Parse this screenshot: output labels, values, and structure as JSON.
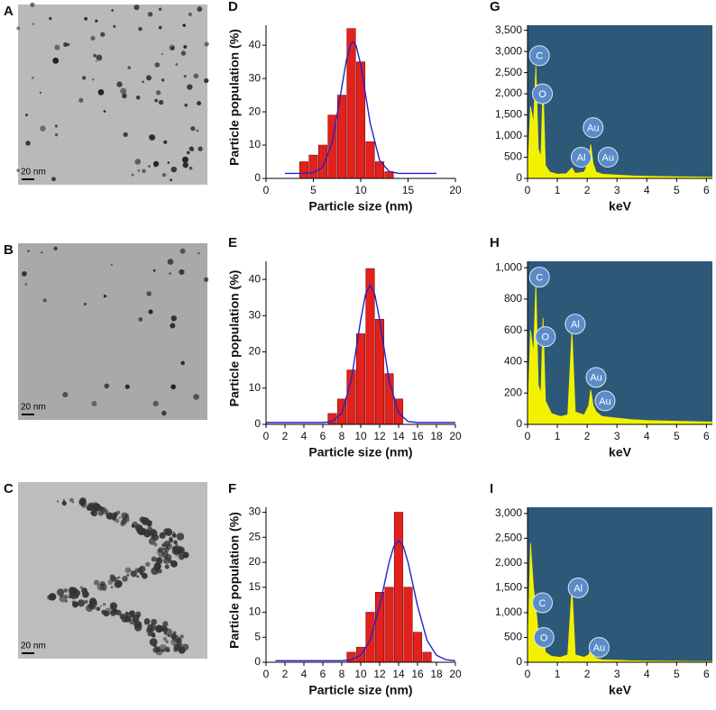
{
  "images": [
    {
      "label": "A",
      "scale_bar": "20 nm"
    },
    {
      "label": "B",
      "scale_bar": "20 nm"
    },
    {
      "label": "C",
      "scale_bar": "20 nm"
    }
  ],
  "chart_data": [
    {
      "type": "histogram",
      "label": "D",
      "x_label": "Particle size (nm)",
      "y_label": "Particle population (%)",
      "color": "#e3211c",
      "bins": [
        3.5,
        4.5,
        5.5,
        6.5,
        7.5,
        8.5,
        9.5,
        10.5,
        11.5,
        12.5,
        13.5
      ],
      "values": [
        5,
        7,
        10,
        19,
        25,
        45,
        35,
        11,
        5,
        2
      ],
      "fit": {
        "color": "#2222cc",
        "x": [
          2,
          4,
          5,
          6,
          7,
          8,
          8.5,
          9,
          9.2,
          9.5,
          10,
          11,
          12,
          13,
          14,
          18
        ],
        "values": [
          1.5,
          1.5,
          1.7,
          3.4,
          10.9,
          27.3,
          35.7,
          40.5,
          41,
          40,
          34.2,
          16.6,
          5.4,
          2.1,
          1.5,
          1.5
        ]
      },
      "xlim": [
        0,
        20
      ],
      "xticks": [
        0,
        5,
        10,
        15,
        20
      ],
      "ylim": [
        0,
        46
      ],
      "yticks": [
        0,
        10,
        20,
        30,
        40
      ]
    },
    {
      "type": "histogram",
      "label": "E",
      "x_label": "Particle size (nm)",
      "y_label": "Particle population (%)",
      "color": "#e3211c",
      "bins": [
        6.5,
        7.5,
        8.5,
        9.5,
        10.5,
        11.5,
        12.5,
        13.5,
        14.5
      ],
      "values": [
        3,
        7,
        15,
        25,
        43,
        29,
        14,
        7
      ],
      "fit": {
        "color": "#2222cc",
        "x": [
          0,
          6,
          7,
          8,
          9,
          10,
          10.5,
          11,
          11.5,
          12,
          13,
          14,
          15,
          16,
          20
        ],
        "values": [
          0.5,
          0.5,
          0.8,
          3.1,
          12.1,
          28.8,
          35.8,
          38.5,
          35.8,
          28.8,
          12.1,
          3.1,
          0.8,
          0.5,
          0.5
        ]
      },
      "xlim": [
        0,
        20
      ],
      "xticks": [
        0,
        2,
        4,
        6,
        8,
        10,
        12,
        14,
        16,
        18,
        20
      ],
      "ylim": [
        0,
        45
      ],
      "yticks": [
        0,
        10,
        20,
        30,
        40
      ]
    },
    {
      "type": "histogram",
      "label": "F",
      "x_label": "Particle size (nm)",
      "y_label": "Particle population (%)",
      "color": "#e3211c",
      "bins": [
        8.5,
        9.5,
        10.5,
        11.5,
        12.5,
        13.5,
        14.5,
        15.5,
        16.5,
        17.5
      ],
      "values": [
        2,
        3,
        10,
        14,
        15,
        30,
        15,
        6,
        2
      ],
      "fit": {
        "color": "#2222cc",
        "x": [
          1,
          8,
          9,
          10,
          11,
          12,
          13,
          13.5,
          14,
          14.5,
          15,
          16,
          17,
          18,
          19,
          20
        ],
        "values": [
          0.3,
          0.3,
          0.5,
          1.4,
          4.4,
          11.3,
          20,
          23.2,
          24.3,
          23.2,
          20,
          11.3,
          4.4,
          1.4,
          0.5,
          0.3
        ]
      },
      "xlim": [
        0,
        20
      ],
      "xticks": [
        0,
        2,
        4,
        6,
        8,
        10,
        12,
        14,
        16,
        18,
        20
      ],
      "ylim": [
        0,
        31
      ],
      "yticks": [
        0,
        5,
        10,
        15,
        20,
        25,
        30
      ]
    },
    {
      "type": "area",
      "label": "G",
      "x_label": "keV",
      "color": "#f2f200",
      "background": "#2e5878",
      "x": [
        0,
        0.1,
        0.2,
        0.28,
        0.36,
        0.45,
        0.52,
        0.6,
        0.75,
        1.0,
        1.3,
        1.49,
        1.6,
        1.9,
        2.05,
        2.12,
        2.2,
        2.3,
        2.5,
        3.0,
        3.5,
        4,
        5,
        6.2
      ],
      "values": [
        0,
        1700,
        1300,
        2650,
        700,
        500,
        2200,
        300,
        150,
        100,
        110,
        250,
        120,
        150,
        400,
        800,
        350,
        150,
        100,
        80,
        60,
        50,
        40,
        30
      ],
      "annotations": [
        {
          "text": "C",
          "x": 0.4,
          "y": 2900
        },
        {
          "text": "O",
          "x": 0.5,
          "y": 2000
        },
        {
          "text": "Au",
          "x": 2.2,
          "y": 1200
        },
        {
          "text": "Al",
          "x": 1.8,
          "y": 500
        },
        {
          "text": "Au",
          "x": 2.7,
          "y": 500
        }
      ],
      "xlim": [
        0,
        6.2
      ],
      "xticks": [
        0,
        1,
        2,
        3,
        4,
        5,
        6
      ],
      "ylim": [
        0,
        3620
      ],
      "yticks": [
        0,
        500,
        {
          "value": 1000,
          "label": "1,000"
        },
        {
          "value": 1500,
          "label": "1,500"
        },
        {
          "value": 2000,
          "label": "2,000"
        },
        {
          "value": 2500,
          "label": "2,500"
        },
        {
          "value": 3000,
          "label": "3,000"
        },
        {
          "value": 3500,
          "label": "3,500"
        }
      ]
    },
    {
      "type": "area",
      "label": "H",
      "x_label": "keV",
      "color": "#f2f200",
      "background": "#2e5878",
      "x": [
        0,
        0.1,
        0.2,
        0.28,
        0.36,
        0.45,
        0.52,
        0.6,
        0.8,
        1.1,
        1.35,
        1.49,
        1.6,
        1.9,
        2.05,
        2.12,
        2.2,
        2.3,
        2.5,
        3,
        3.5,
        4,
        5,
        6.2
      ],
      "values": [
        0,
        600,
        450,
        900,
        250,
        200,
        680,
        150,
        70,
        50,
        60,
        600,
        80,
        60,
        120,
        220,
        120,
        80,
        50,
        40,
        30,
        25,
        20,
        15
      ],
      "annotations": [
        {
          "text": "C",
          "x": 0.4,
          "y": 940
        },
        {
          "text": "O",
          "x": 0.6,
          "y": 560
        },
        {
          "text": "Al",
          "x": 1.6,
          "y": 640
        },
        {
          "text": "Au",
          "x": 2.3,
          "y": 300
        },
        {
          "text": "Au",
          "x": 2.6,
          "y": 150
        }
      ],
      "xlim": [
        0,
        6.2
      ],
      "xticks": [
        0,
        1,
        2,
        3,
        4,
        5,
        6
      ],
      "ylim": [
        0,
        1041
      ],
      "yticks": [
        0,
        200,
        400,
        600,
        800,
        {
          "value": 1000,
          "label": "1,000"
        }
      ]
    },
    {
      "type": "area",
      "label": "I",
      "x_label": "keV",
      "color": "#f2f200",
      "background": "#2e5878",
      "x": [
        0,
        0.1,
        0.2,
        0.28,
        0.36,
        0.45,
        0.52,
        0.6,
        0.8,
        1.1,
        1.35,
        1.49,
        1.6,
        1.9,
        2.05,
        2.12,
        2.2,
        2.3,
        2.5,
        3,
        3.5,
        4,
        5,
        6.2
      ],
      "values": [
        0,
        2400,
        1500,
        1100,
        600,
        500,
        700,
        200,
        120,
        100,
        150,
        1500,
        150,
        100,
        150,
        250,
        120,
        80,
        50,
        40,
        30,
        25,
        20,
        15
      ],
      "annotations": [
        {
          "text": "C",
          "x": 0.5,
          "y": 1200
        },
        {
          "text": "O",
          "x": 0.55,
          "y": 500
        },
        {
          "text": "Al",
          "x": 1.7,
          "y": 1500
        },
        {
          "text": "Au",
          "x": 2.4,
          "y": 300
        }
      ],
      "xlim": [
        0,
        6.2
      ],
      "xticks": [
        0,
        1,
        2,
        3,
        4,
        5,
        6
      ],
      "ylim": [
        0,
        3125
      ],
      "yticks": [
        0,
        500,
        {
          "value": 1000,
          "label": "1,000"
        },
        {
          "value": 1500,
          "label": "1,500"
        },
        {
          "value": 2000,
          "label": "2,000"
        },
        {
          "value": 2500,
          "label": "2,500"
        },
        {
          "value": 3000,
          "label": "3,000"
        }
      ]
    }
  ]
}
